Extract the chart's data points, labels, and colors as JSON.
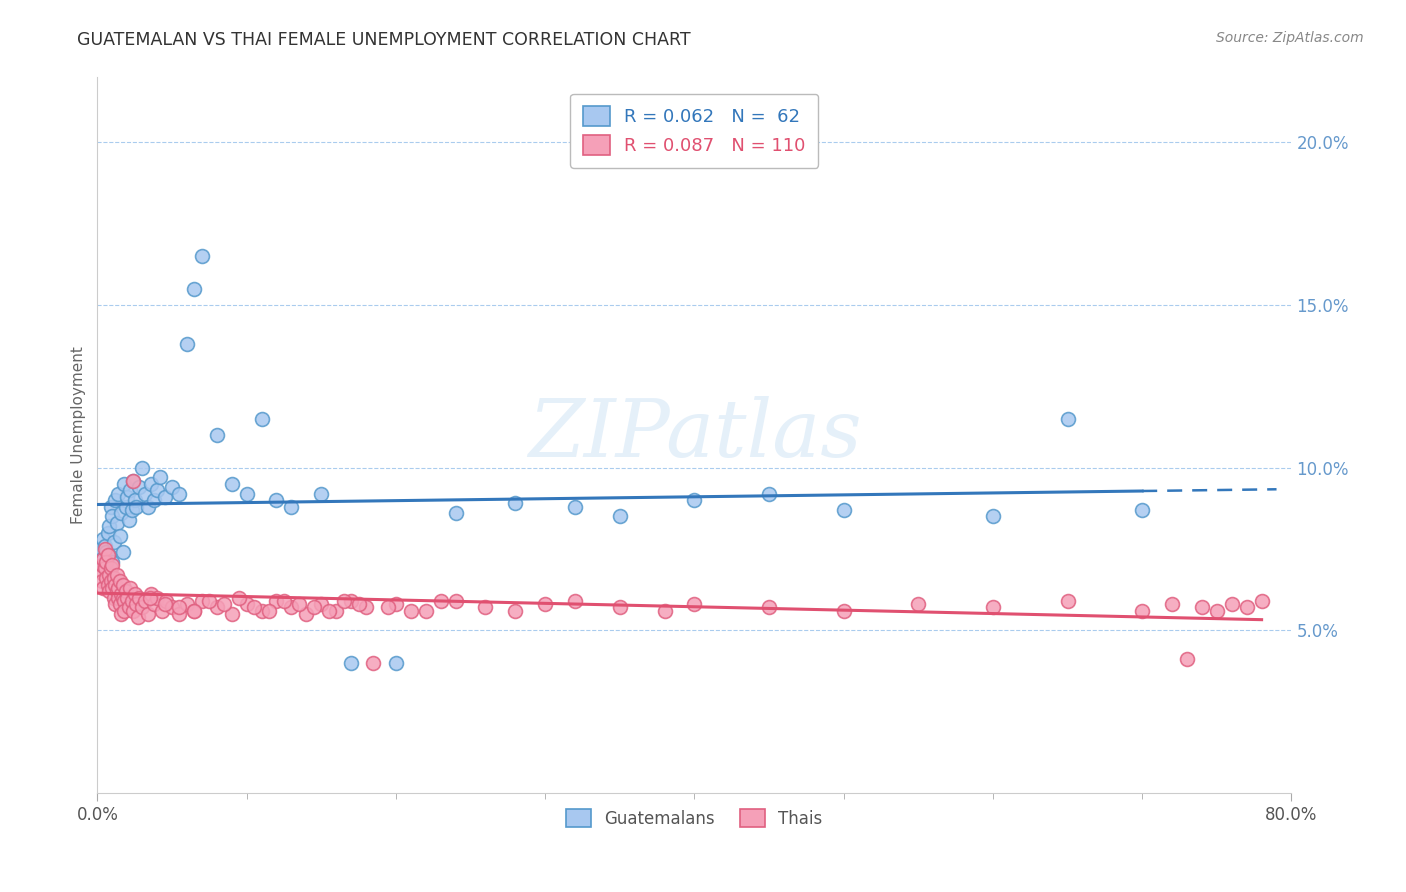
{
  "title": "GUATEMALAN VS THAI FEMALE UNEMPLOYMENT CORRELATION CHART",
  "source": "Source: ZipAtlas.com",
  "ylabel": "Female Unemployment",
  "right_yticks": [
    "20.0%",
    "15.0%",
    "10.0%",
    "5.0%"
  ],
  "right_ytick_values": [
    0.2,
    0.15,
    0.1,
    0.05
  ],
  "legend_label1": "Guatemalans",
  "legend_label2": "Thais",
  "guatemalan_color": "#A8C8F0",
  "guatemalan_edge": "#5599CC",
  "thai_color": "#F5A0B8",
  "thai_edge": "#E06080",
  "trendline_guat_color": "#3377BB",
  "trendline_thai_color": "#E05070",
  "watermark": "ZIPatlas",
  "xmin": 0.0,
  "xmax": 0.8,
  "ymin": 0.0,
  "ymax": 0.22,
  "xtick_positions": [
    0.0,
    0.8
  ],
  "xtick_labels": [
    "0.0%",
    "80.0%"
  ],
  "guatemalan_x": [
    0.002,
    0.003,
    0.004,
    0.005,
    0.005,
    0.006,
    0.007,
    0.007,
    0.008,
    0.008,
    0.009,
    0.01,
    0.01,
    0.011,
    0.012,
    0.013,
    0.014,
    0.015,
    0.016,
    0.017,
    0.018,
    0.019,
    0.02,
    0.021,
    0.022,
    0.023,
    0.024,
    0.025,
    0.026,
    0.028,
    0.03,
    0.032,
    0.034,
    0.036,
    0.038,
    0.04,
    0.042,
    0.045,
    0.05,
    0.055,
    0.06,
    0.065,
    0.07,
    0.08,
    0.09,
    0.1,
    0.11,
    0.12,
    0.13,
    0.15,
    0.17,
    0.2,
    0.24,
    0.28,
    0.32,
    0.35,
    0.4,
    0.45,
    0.5,
    0.6,
    0.65,
    0.7
  ],
  "guatemalan_y": [
    0.075,
    0.072,
    0.078,
    0.07,
    0.076,
    0.074,
    0.08,
    0.068,
    0.073,
    0.082,
    0.088,
    0.085,
    0.071,
    0.077,
    0.09,
    0.083,
    0.092,
    0.079,
    0.086,
    0.074,
    0.095,
    0.088,
    0.091,
    0.084,
    0.093,
    0.087,
    0.096,
    0.09,
    0.088,
    0.094,
    0.1,
    0.092,
    0.088,
    0.095,
    0.09,
    0.093,
    0.097,
    0.091,
    0.094,
    0.092,
    0.138,
    0.155,
    0.165,
    0.11,
    0.095,
    0.092,
    0.115,
    0.09,
    0.088,
    0.092,
    0.04,
    0.04,
    0.086,
    0.089,
    0.088,
    0.085,
    0.09,
    0.092,
    0.087,
    0.085,
    0.115,
    0.087
  ],
  "thai_x": [
    0.002,
    0.003,
    0.003,
    0.004,
    0.004,
    0.005,
    0.005,
    0.006,
    0.006,
    0.007,
    0.007,
    0.008,
    0.008,
    0.009,
    0.009,
    0.01,
    0.01,
    0.011,
    0.011,
    0.012,
    0.012,
    0.013,
    0.013,
    0.014,
    0.014,
    0.015,
    0.015,
    0.016,
    0.016,
    0.017,
    0.017,
    0.018,
    0.018,
    0.019,
    0.02,
    0.021,
    0.022,
    0.023,
    0.024,
    0.025,
    0.026,
    0.027,
    0.028,
    0.03,
    0.032,
    0.034,
    0.036,
    0.038,
    0.04,
    0.043,
    0.046,
    0.05,
    0.055,
    0.06,
    0.065,
    0.07,
    0.08,
    0.09,
    0.1,
    0.11,
    0.12,
    0.13,
    0.14,
    0.15,
    0.16,
    0.17,
    0.18,
    0.2,
    0.22,
    0.24,
    0.26,
    0.28,
    0.3,
    0.32,
    0.35,
    0.38,
    0.4,
    0.45,
    0.5,
    0.55,
    0.6,
    0.65,
    0.7,
    0.72,
    0.73,
    0.74,
    0.75,
    0.76,
    0.77,
    0.78,
    0.024,
    0.035,
    0.045,
    0.055,
    0.065,
    0.075,
    0.085,
    0.095,
    0.105,
    0.115,
    0.125,
    0.135,
    0.145,
    0.155,
    0.165,
    0.175,
    0.185,
    0.195,
    0.21,
    0.23
  ],
  "thai_y": [
    0.068,
    0.07,
    0.065,
    0.072,
    0.063,
    0.069,
    0.075,
    0.066,
    0.071,
    0.064,
    0.073,
    0.067,
    0.062,
    0.069,
    0.065,
    0.063,
    0.07,
    0.066,
    0.06,
    0.064,
    0.058,
    0.062,
    0.067,
    0.06,
    0.063,
    0.058,
    0.065,
    0.061,
    0.055,
    0.06,
    0.064,
    0.059,
    0.056,
    0.062,
    0.06,
    0.057,
    0.063,
    0.059,
    0.056,
    0.061,
    0.058,
    0.054,
    0.06,
    0.057,
    0.059,
    0.055,
    0.061,
    0.058,
    0.06,
    0.056,
    0.059,
    0.057,
    0.055,
    0.058,
    0.056,
    0.059,
    0.057,
    0.055,
    0.058,
    0.056,
    0.059,
    0.057,
    0.055,
    0.058,
    0.056,
    0.059,
    0.057,
    0.058,
    0.056,
    0.059,
    0.057,
    0.056,
    0.058,
    0.059,
    0.057,
    0.056,
    0.058,
    0.057,
    0.056,
    0.058,
    0.057,
    0.059,
    0.056,
    0.058,
    0.041,
    0.057,
    0.056,
    0.058,
    0.057,
    0.059,
    0.096,
    0.06,
    0.058,
    0.057,
    0.056,
    0.059,
    0.058,
    0.06,
    0.057,
    0.056,
    0.059,
    0.058,
    0.057,
    0.056,
    0.059,
    0.058,
    0.04,
    0.057,
    0.056,
    0.059
  ]
}
